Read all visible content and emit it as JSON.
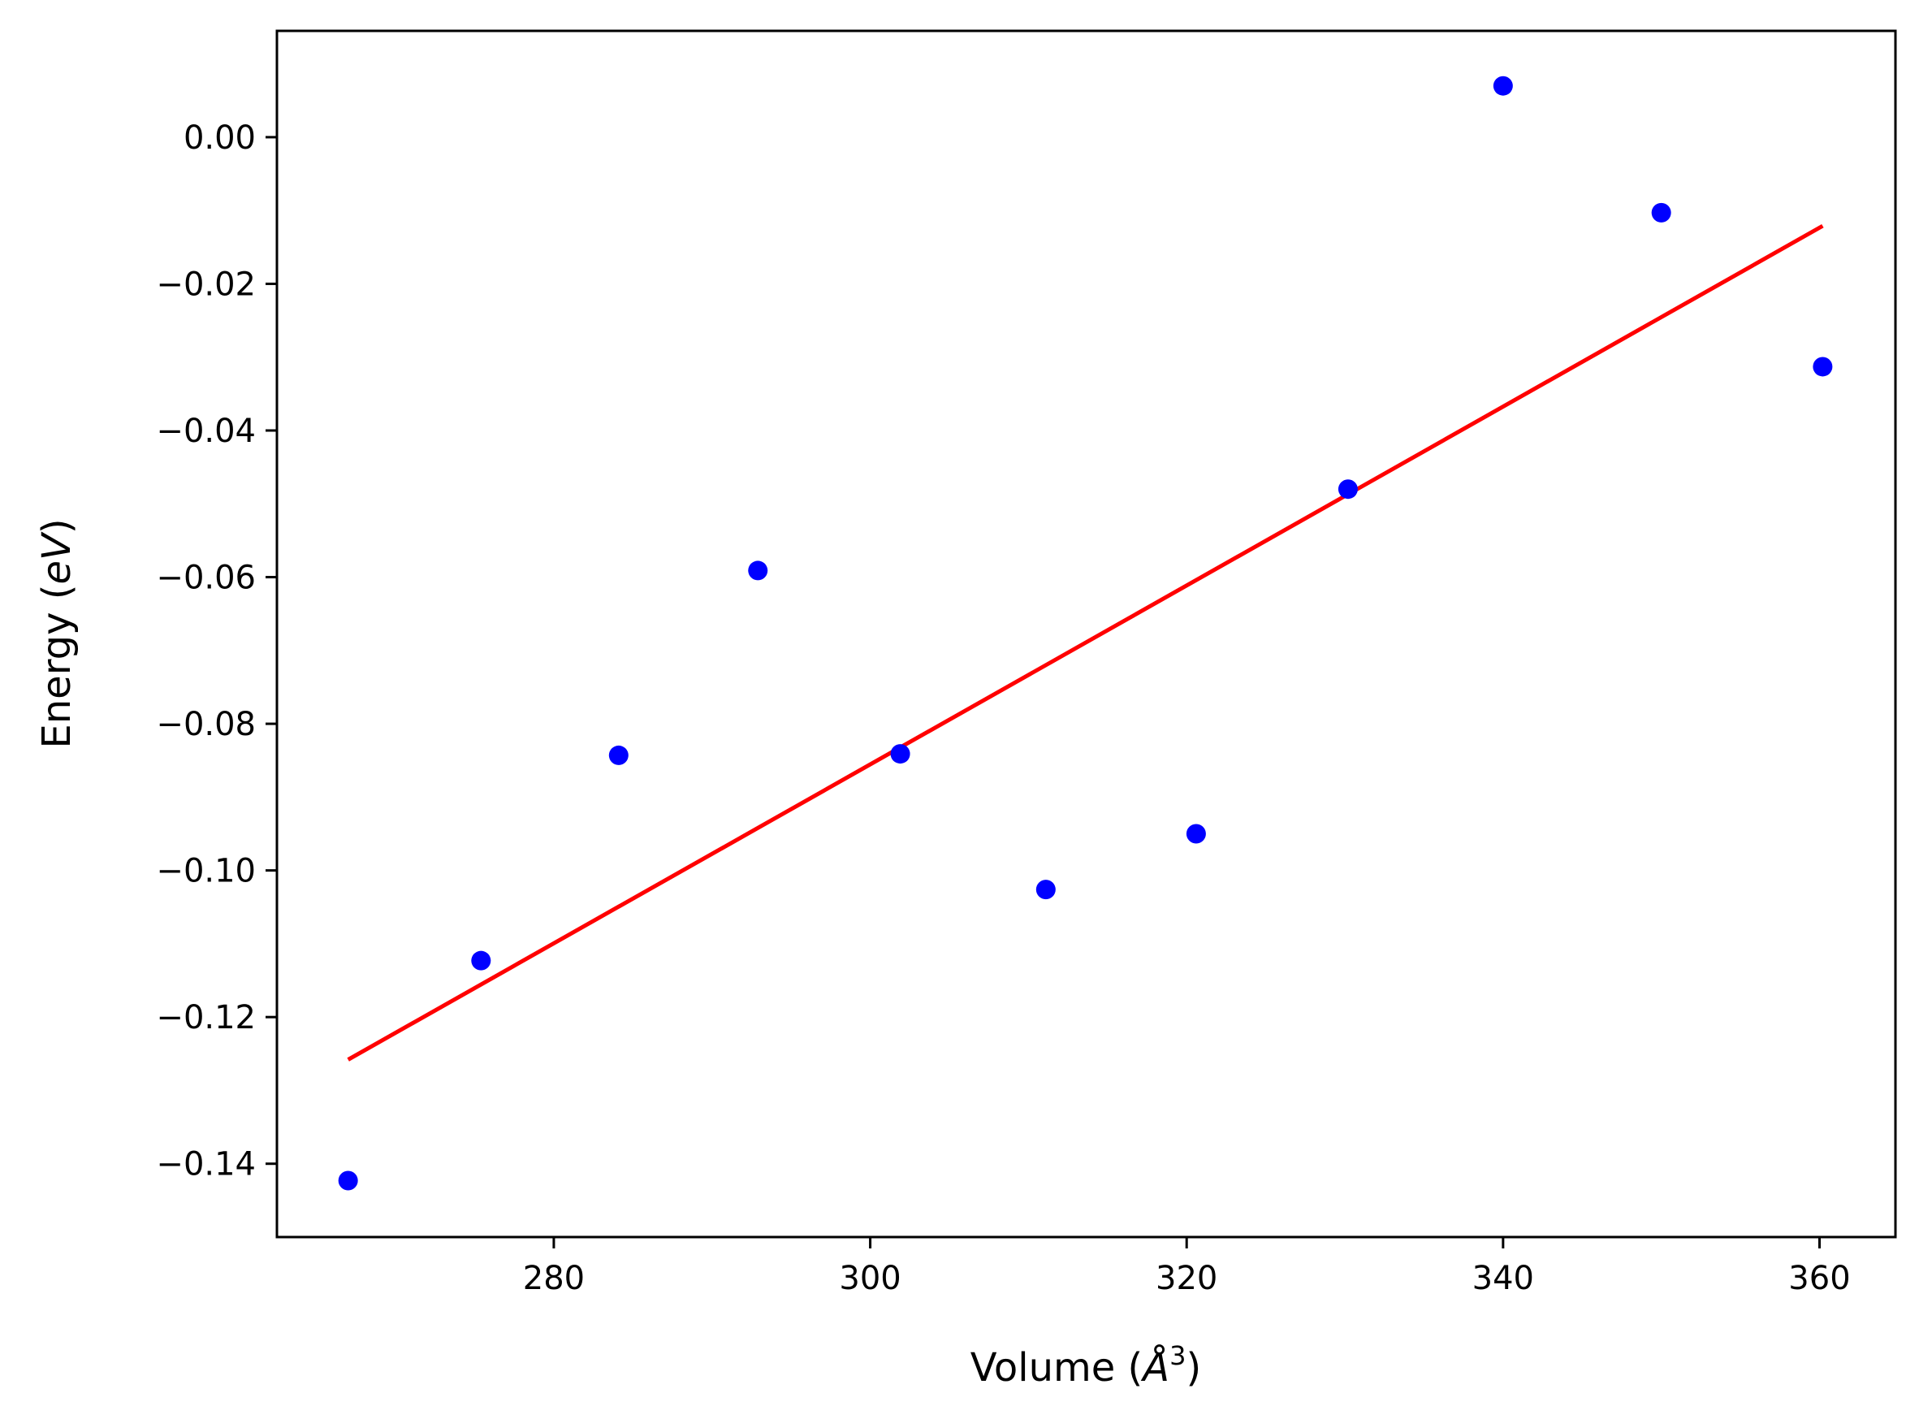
{
  "chart_data": {
    "type": "scatter",
    "title": "",
    "xlabel_text": "Volume (",
    "xlabel_symbol": "Å",
    "xlabel_exponent": "3",
    "xlabel_close": ")",
    "ylabel_text": "Energy (",
    "ylabel_unit": "eV",
    "ylabel_close": ")",
    "xlim": [
      262.5,
      364.8
    ],
    "ylim": [
      -0.15,
      0.0145
    ],
    "x_ticks": [
      280,
      300,
      320,
      340,
      360
    ],
    "x_tick_labels": [
      "280",
      "300",
      "320",
      "340",
      "360"
    ],
    "y_ticks": [
      0.0,
      -0.02,
      -0.04,
      -0.06,
      -0.08,
      -0.1,
      -0.12,
      -0.14
    ],
    "y_tick_labels": [
      "0.00",
      "−0.02",
      "−0.04",
      "−0.06",
      "−0.08",
      "−0.10",
      "−0.12",
      "−0.14"
    ],
    "grid": false,
    "series": [
      {
        "type": "scatter",
        "color": "#0000ff",
        "points": [
          [
            267.0,
            -0.1423
          ],
          [
            275.4,
            -0.1123
          ],
          [
            284.1,
            -0.0843
          ],
          [
            292.9,
            -0.0591
          ],
          [
            301.9,
            -0.0841
          ],
          [
            311.1,
            -0.1026
          ],
          [
            320.6,
            -0.095
          ],
          [
            330.2,
            -0.048
          ],
          [
            340.0,
            0.007
          ],
          [
            350.0,
            -0.0103
          ],
          [
            360.2,
            -0.0313
          ]
        ]
      },
      {
        "type": "line",
        "color": "#ff0000",
        "points": [
          [
            267.0,
            -0.1258
          ],
          [
            360.2,
            -0.0121
          ]
        ]
      }
    ]
  }
}
